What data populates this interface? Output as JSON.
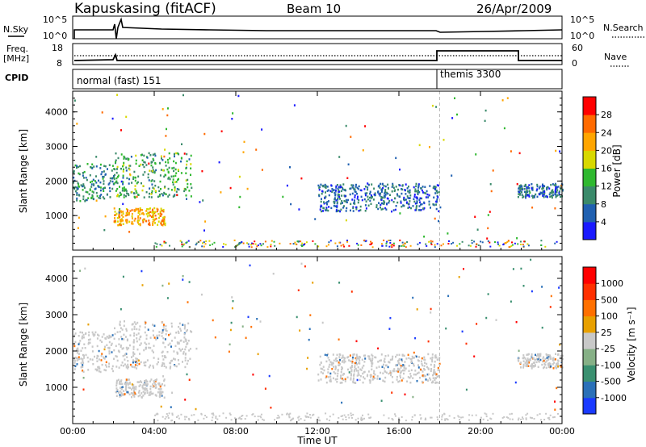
{
  "header": {
    "station": "Kapuskasing (fitACF)",
    "beam": "Beam 10",
    "date": "26/Apr/2009"
  },
  "top_panels": {
    "nsky_label": "N.Sky",
    "nsearch_label": "N.Search",
    "noise_ticks_left": [
      "10^5",
      "10^0"
    ],
    "noise_ticks_right": [
      "10^5",
      "10^0"
    ],
    "freq_label": "Freq.",
    "freq_unit": "[MHz]",
    "freq_ticks": [
      "18",
      "8"
    ],
    "nave_label": "Nave",
    "nave_ticks": [
      "60",
      "0"
    ],
    "cpid_label": "CPID",
    "cpid_segments": [
      {
        "label": "normal (fast) 151",
        "start_hour": 0,
        "end_hour": 18
      },
      {
        "label": "themis 3300",
        "start_hour": 18,
        "end_hour": 24
      }
    ]
  },
  "axes": {
    "ylabel": "Slant Range [km]",
    "xlabel": "Time UT",
    "yticks": [
      "1000",
      "2000",
      "3000",
      "4000"
    ],
    "xticks": [
      "00:00",
      "04:00",
      "08:00",
      "12:00",
      "16:00",
      "20:00",
      "00:00"
    ]
  },
  "colorbars": {
    "power": {
      "label": "Power [dB]",
      "ticks": [
        "4",
        "8",
        "12",
        "16",
        "20",
        "24",
        "28"
      ],
      "colors": [
        "#1a1aff",
        "#2060b0",
        "#3a8a6a",
        "#2fb82f",
        "#d8d800",
        "#ffa500",
        "#ff6a00",
        "#ff0000"
      ]
    },
    "velocity": {
      "label": "Velocity [m s⁻¹]",
      "ticks": [
        "1000",
        "500",
        "100",
        "25",
        "-25",
        "-100",
        "-500",
        "-1000"
      ],
      "colors": [
        "#1a3aff",
        "#2a70b8",
        "#3a9070",
        "#86b086",
        "#c8c8c8",
        "#e8a000",
        "#ff7000",
        "#ff3000",
        "#ff0000"
      ]
    }
  },
  "chart_data": {
    "type": "heatmap",
    "x_unit": "hours UT",
    "xlim": [
      0,
      24
    ],
    "ylim": [
      0,
      4600
    ],
    "mode_change_hour": 18,
    "echo_regions": [
      {
        "name": "",
        "start_hour": 0.0,
        "end_hour": 2.0,
        "range_km": [
          1400,
          2500
        ],
        "power_db": 10
      },
      {
        "name": "",
        "start_hour": 2.0,
        "end_hour": 4.5,
        "range_km": [
          700,
          1200
        ],
        "power_db": 22
      },
      {
        "name": "",
        "start_hour": 2.0,
        "end_hour": 5.8,
        "range_km": [
          1500,
          2800
        ],
        "power_db": 12
      },
      {
        "name": "",
        "start_hour": 12.0,
        "end_hour": 18.0,
        "range_km": [
          1100,
          1900
        ],
        "power_db": 7
      },
      {
        "name": "",
        "start_hour": 21.8,
        "end_hour": 24.0,
        "range_km": [
          1500,
          1900
        ],
        "power_db": 7
      }
    ],
    "nave_step": {
      "start_hour": 18,
      "end_hour": 21.8
    }
  }
}
